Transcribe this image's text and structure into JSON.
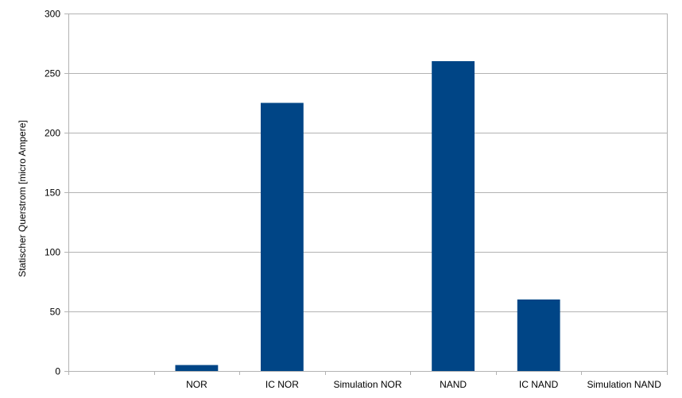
{
  "chart_data": {
    "type": "bar",
    "categories": [
      "",
      "NOR",
      "IC NOR",
      "Simulation NOR",
      "NAND",
      "IC NAND",
      "Simulation NAND"
    ],
    "values": [
      0,
      5,
      225,
      0,
      260,
      60,
      0
    ],
    "title": "",
    "xlabel": "",
    "ylabel": "Statischer Querstrom [micro Ampere]",
    "ylim": [
      0,
      300
    ],
    "yticks": [
      0,
      50,
      100,
      150,
      200,
      250,
      300
    ],
    "grid": true,
    "legend": "none",
    "bar_color": "#004586",
    "grid_color": "#b3b3b3"
  }
}
